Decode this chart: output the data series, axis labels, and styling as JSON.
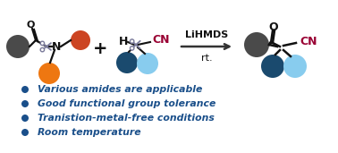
{
  "bg_color": "#ffffff",
  "bullet_color": "#1a4f8a",
  "bullet_text_color": "#1a4f8a",
  "cn_color": "#990033",
  "arrow_color": "#333333",
  "bullet_points": [
    "Various amides are applicable",
    "Good functional group tolerance",
    "Tranistion-metal-free conditions",
    "Room temperature"
  ],
  "colors": {
    "dark_gray": "#4a4a4a",
    "red_orange": "#cc4422",
    "orange": "#ee7711",
    "dark_blue": "#1a4a6e",
    "light_blue": "#88ccee",
    "white": "#ffffff",
    "black": "#111111",
    "scissors_gray": "#7a7a9a"
  },
  "reaction_label": "LiHMDS",
  "reaction_sublabel": "rt.",
  "figsize": [
    3.78,
    1.71
  ],
  "dpi": 100
}
